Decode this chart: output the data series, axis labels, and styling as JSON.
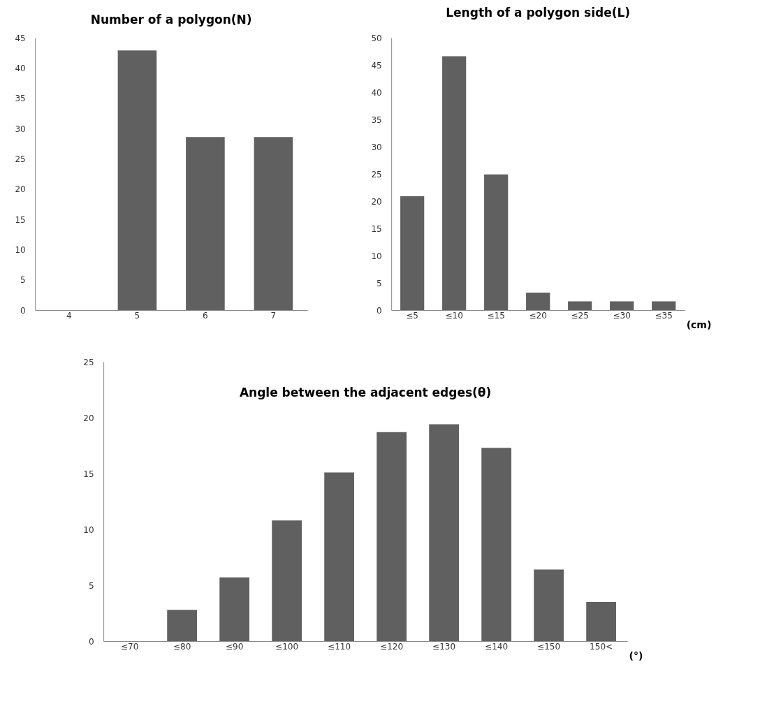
{
  "chart_data": [
    {
      "type": "bar",
      "title": "Number of a polygon(N)",
      "categories": [
        "4",
        "5",
        "6",
        "7"
      ],
      "values": [
        0,
        42.9,
        28.6,
        28.6
      ],
      "color": "#606060",
      "ylim": [
        0,
        45
      ],
      "yticks": [
        0,
        5,
        10,
        15,
        20,
        25,
        30,
        35,
        40,
        45
      ],
      "grid": false
    },
    {
      "type": "bar",
      "title": "Length of a polygon side(L)",
      "xlabel": "(cm)",
      "categories": [
        "≤5",
        "≤10",
        "≤15",
        "≤20",
        "≤25",
        "≤30",
        "≤35"
      ],
      "values": [
        20.9,
        46.6,
        24.9,
        3.2,
        1.6,
        1.6,
        1.6
      ],
      "color": "#606060",
      "ylim": [
        0,
        50
      ],
      "yticks": [
        0,
        5,
        10,
        15,
        20,
        25,
        30,
        35,
        40,
        45,
        50
      ],
      "grid": false
    },
    {
      "type": "bar",
      "title": "Angle between the adjacent edges(θ)",
      "xlabel": "(°)",
      "categories": [
        "≤70",
        "≤80",
        "≤90",
        "≤100",
        "≤110",
        "≤120",
        "≤130",
        "≤140",
        "≤150",
        "150<"
      ],
      "values": [
        0,
        2.8,
        5.7,
        10.8,
        15.1,
        18.7,
        19.4,
        17.3,
        6.4,
        3.5
      ],
      "color": "#606060",
      "ylim": [
        0,
        25
      ],
      "yticks": [
        0,
        5,
        10,
        15,
        20,
        25
      ],
      "grid": false
    }
  ]
}
